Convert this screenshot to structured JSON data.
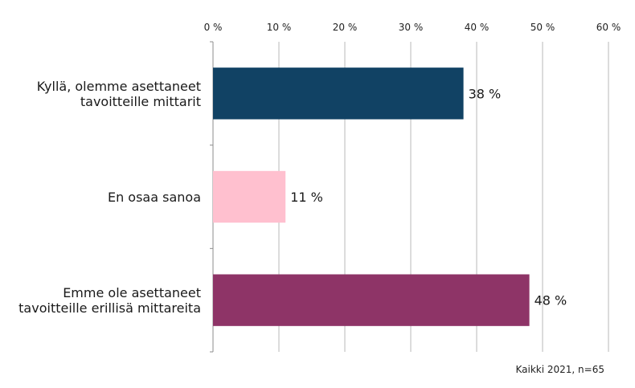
{
  "chart_data": {
    "type": "bar",
    "orientation": "horizontal",
    "categories": [
      [
        "Kyllä, olemme asettaneet",
        "tavoitteille mittarit"
      ],
      [
        "En osaa sanoa"
      ],
      [
        "Emme ole asettaneet",
        "tavoitteille erillisä mittareita"
      ]
    ],
    "values": [
      38,
      11,
      48
    ],
    "value_labels": [
      "38 %",
      "11 %",
      "48 %"
    ],
    "colors": [
      "#114264",
      "#ffc0cf",
      "#8e3467"
    ],
    "xlim": [
      0,
      60
    ],
    "x_ticks": [
      0,
      10,
      20,
      30,
      40,
      50,
      60
    ],
    "x_tick_labels": [
      "0 %",
      "10 %",
      "20 %",
      "30 %",
      "40 %",
      "50 %",
      "60 %"
    ],
    "x_axis_position": "top",
    "grid": true,
    "legend": "none",
    "note": "Kaikki 2021, n=65"
  }
}
